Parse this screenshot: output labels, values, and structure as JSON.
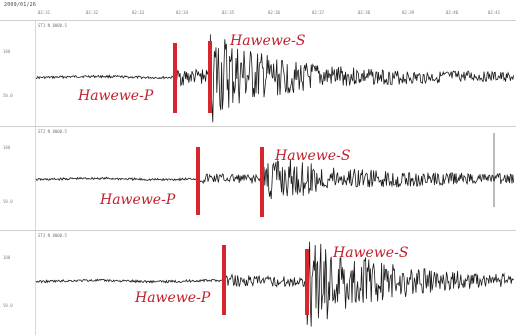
{
  "header": {
    "date": "2009/01/26",
    "ticks": [
      "02:31",
      "02:32",
      "02:33",
      "02:34",
      "02:35",
      "02:36",
      "02:37",
      "02:38",
      "02:39",
      "02:40",
      "02:41"
    ]
  },
  "panels": [
    {
      "station": "ST1  N  8000.5",
      "amp_top": "100",
      "amp_bottom": "50.0",
      "p_label": "Hawewe-P",
      "s_label": "Hawewe-S"
    },
    {
      "station": "ST2  N  8000.5",
      "amp_top": "100",
      "amp_bottom": "50.0",
      "p_label": "Hawewe-P",
      "s_label": "Hawewe-S"
    },
    {
      "station": "ST3  N  8000.5",
      "amp_top": "100",
      "amp_bottom": "50.0",
      "p_label": "Hawewe-P",
      "s_label": "Hawewe-S"
    }
  ],
  "colors": {
    "pick": "#d7262e",
    "label": "#c01f2b",
    "trace": "#1a1a1a"
  }
}
